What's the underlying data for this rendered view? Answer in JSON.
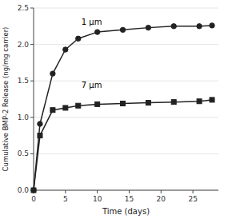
{
  "chart_data": {
    "type": "line",
    "xlabel": "Time (days)",
    "ylabel": "Cumulative BMP-2 Release (ng/mg carrier)",
    "x": [
      0,
      1,
      3,
      5,
      7,
      10,
      14,
      18,
      22,
      26,
      28
    ],
    "series": [
      {
        "color": "#222222",
        "marker": "circle",
        "values": [
          0.0,
          0.91,
          1.6,
          1.93,
          2.08,
          2.17,
          2.2,
          2.23,
          2.25,
          2.25,
          2.26
        ]
      },
      {
        "color": "#222222",
        "marker": "square",
        "values": [
          0.0,
          0.75,
          1.1,
          1.13,
          1.16,
          1.18,
          1.19,
          1.2,
          1.21,
          1.22,
          1.24
        ]
      }
    ],
    "annotations": [
      {
        "text": "1 μm",
        "x": 7.5,
        "y": 2.25
      },
      {
        "text": "7 μm",
        "x": 7.5,
        "y": 1.38
      }
    ],
    "xlim": [
      0,
      29
    ],
    "ylim": [
      0,
      2.5
    ],
    "xticks": [
      0,
      5,
      10,
      15,
      20,
      25
    ],
    "yticks": [
      {
        "value": 0.0,
        "label": "0.0"
      },
      {
        "value": 0.5,
        "label": "0.5"
      },
      {
        "value": 1.0,
        "label": "1.0"
      },
      {
        "value": 1.5,
        "label": "1.5"
      },
      {
        "value": 2.0,
        "label": "2.0"
      },
      {
        "value": 2.5,
        "label": "2.5"
      }
    ]
  }
}
